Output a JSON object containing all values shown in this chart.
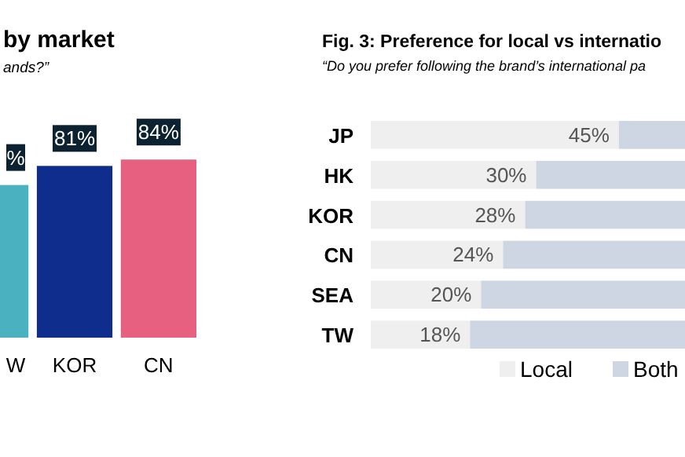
{
  "chart_data": [
    {
      "type": "bar",
      "title": "by market",
      "subtitle": "ands?”",
      "categories": [
        "W",
        "KOR",
        "CN"
      ],
      "values": [
        72,
        81,
        84
      ],
      "colors": [
        "#4ab1c1",
        "#0e2d8c",
        "#e8607f"
      ],
      "value_labels": [
        "%",
        "81%",
        "84%"
      ],
      "ylim": [
        0,
        100
      ]
    },
    {
      "type": "bar",
      "orientation": "horizontal",
      "stacked": true,
      "title": "Fig. 3: Preference for local vs internatio",
      "subtitle": "“Do you prefer following the brand’s international pa",
      "categories": [
        "JP",
        "HK",
        "KOR",
        "CN",
        "SEA",
        "TW"
      ],
      "xlim": [
        0,
        57
      ],
      "legend": "bottom",
      "tick_labels": "y",
      "series": [
        {
          "name": "Local",
          "color": "#efefef",
          "values": [
            45,
            30,
            28,
            24,
            20,
            18
          ],
          "value_labels": [
            "45%",
            "30%",
            "28%",
            "24%",
            "20%",
            "18%"
          ]
        },
        {
          "name": "Both",
          "color": "#cdd6e2",
          "values": [
            12,
            27,
            29,
            33,
            37,
            39
          ]
        }
      ]
    }
  ]
}
